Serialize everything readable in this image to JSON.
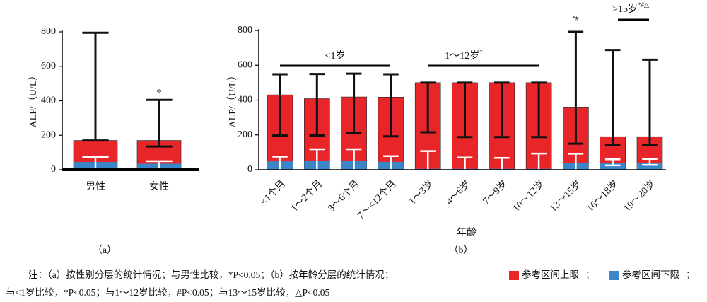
{
  "chart_data": [
    {
      "type": "bar",
      "ylabel": "ALP/（U/L）",
      "categories": [
        "男性",
        "女性"
      ],
      "ylim": [
        0,
        800
      ],
      "yticks": [
        0,
        200,
        400,
        600,
        800
      ],
      "series": [
        {
          "color": "#e8262a",
          "values": [
            170,
            170
          ],
          "error_high": [
            795,
            405
          ],
          "error_low": [
            170,
            135
          ]
        },
        {
          "color": "#3a86c8",
          "values": [
            45,
            35
          ],
          "error_high": [
            75,
            50
          ],
          "error_low": [
            0,
            0
          ]
        }
      ],
      "annotations": [
        {
          "text": "*"
        }
      ],
      "panel_label": "（a）"
    },
    {
      "type": "bar",
      "ylabel": "ALP/（U/L）",
      "xlabel": "年龄",
      "categories": [
        "<1个月",
        "1～2个月",
        "3～6个月",
        "7～<12个月",
        "1～3岁",
        "4～6岁",
        "7～9岁",
        "10～12岁",
        "13～15岁",
        "16～18岁",
        "19～20岁"
      ],
      "ylim": [
        0,
        800
      ],
      "yticks": [
        0,
        200,
        400,
        600,
        800
      ],
      "series": [
        {
          "name": "参考区间上限",
          "color": "#e8262a",
          "values": [
            430,
            408,
            418,
            417,
            500,
            500,
            500,
            500,
            360,
            190,
            190
          ],
          "error_high": [
            548,
            550,
            552,
            548,
            500,
            500,
            500,
            500,
            792,
            688,
            632
          ],
          "error_low": [
            197,
            197,
            213,
            192,
            215,
            188,
            188,
            188,
            150,
            140,
            140
          ]
        },
        {
          "name": "参考区间下限",
          "color": "#3a86c8",
          "values": [
            48,
            50,
            50,
            45,
            5,
            5,
            5,
            5,
            40,
            40,
            38
          ],
          "error_high": [
            75,
            118,
            118,
            78,
            107,
            70,
            68,
            93,
            92,
            60,
            62
          ],
          "error_low": [
            0,
            0,
            0,
            0,
            0,
            0,
            0,
            0,
            0,
            25,
            28
          ]
        }
      ],
      "annotations": [
        {
          "text": "<1岁"
        },
        {
          "text": "1～12岁",
          "sup": "*"
        },
        {
          "text": "",
          "sup": "*#"
        },
        {
          "text": ">15岁",
          "sup": "*#△"
        }
      ],
      "panel_label": "（b）"
    }
  ],
  "caption": {
    "line1": "注：（a）按性别分层的统计情况；与男性比较，*P<0.05；（b）按年龄分层的统计情况；",
    "after_upper": "；",
    "after_lower": "；",
    "line2": "与<1岁比较，*P<0.05；与1～12岁比较，#P<0.05；与13～15岁比较，△P<0.05"
  }
}
